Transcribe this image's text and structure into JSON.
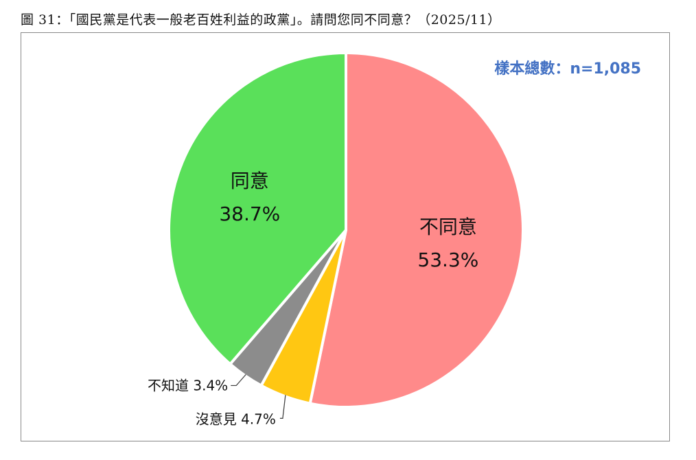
{
  "chart_title": "圖 31：「國民黨是代表一般老百姓利益的政黨」。請問您同不同意？（2025/11）",
  "sample_size": "樣本總數：n=1,085",
  "chart_data": {
    "type": "pie",
    "title": "圖 31：「國民黨是代表一般老百姓利益的政黨」。請問您同不同意？（2025/11）",
    "slices": [
      {
        "label": "不同意",
        "value": 53.3,
        "value_label": "53.3%",
        "color": "#ff8a8a"
      },
      {
        "label": "沒意見",
        "value": 4.7,
        "value_label": "4.7%",
        "color": "#ffc712"
      },
      {
        "label": "不知道",
        "value": 3.4,
        "value_label": "3.4%",
        "color": "#8c8c8c"
      },
      {
        "label": "同意",
        "value": 38.7,
        "value_label": "38.7%",
        "color": "#5ae05a"
      }
    ],
    "start": "12 o'clock",
    "direction": "clockwise"
  }
}
